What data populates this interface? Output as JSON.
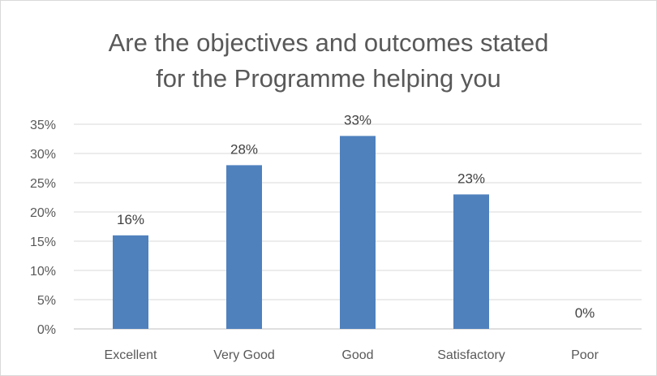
{
  "chart_data": {
    "type": "bar",
    "title_lines": [
      "Are the objectives and outcomes stated",
      "for the Programme helping you"
    ],
    "categories": [
      "Excellent",
      "Very Good",
      "Good",
      "Satisfactory",
      "Poor"
    ],
    "values": [
      16,
      28,
      33,
      23,
      0
    ],
    "data_labels": [
      "16%",
      "28%",
      "33%",
      "23%",
      "0%"
    ],
    "yticks": [
      "0%",
      "5%",
      "10%",
      "15%",
      "20%",
      "25%",
      "30%",
      "35%"
    ],
    "ylim": [
      0,
      35
    ],
    "grid": true,
    "legend": "none",
    "bar_color": "#4f81bd"
  }
}
